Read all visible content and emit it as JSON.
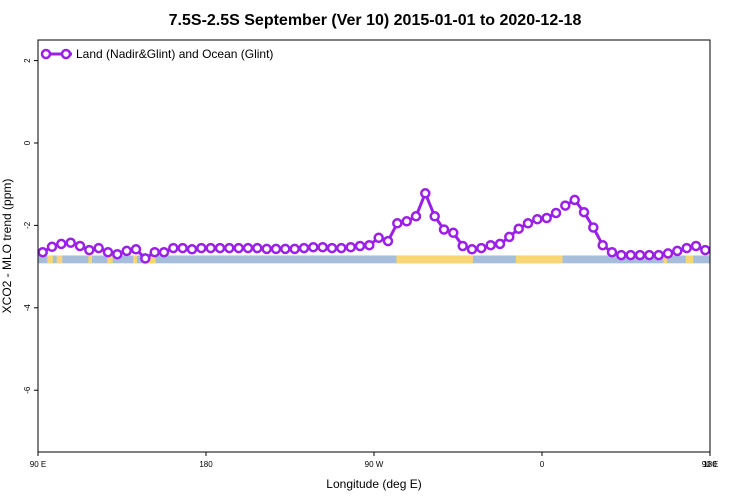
{
  "chart_data": {
    "type": "line",
    "title": "7.5S-2.5S September (Ver 10)   2015-01-01 to 2020-12-18",
    "xlabel": "Longitude (deg E)",
    "ylabel": "XCO2 - MLO trend (ppm)",
    "xlim": [
      90,
      450
    ],
    "ylim": [
      -7.5,
      2.5
    ],
    "x_tick_values": [
      90,
      180,
      270,
      360,
      450,
      540
    ],
    "x_tick_labels": [
      "90 E",
      "180",
      "90 W",
      "0",
      "90 E",
      "180"
    ],
    "y_ticks": [
      2,
      0,
      -2,
      -4,
      -6
    ],
    "y_tick_labels": [
      "2",
      "0",
      "-2",
      "-4",
      "-6"
    ],
    "legend": {
      "position": "top-left",
      "entries": [
        "Land (Nadir&Glint) and Ocean (Glint)"
      ]
    },
    "series": [
      {
        "name": "Land (Nadir&Glint) and Ocean (Glint)",
        "color": "#9B1FE8",
        "points": [
          [
            92.5,
            -2.65
          ],
          [
            97.5,
            -2.52
          ],
          [
            102.5,
            -2.45
          ],
          [
            107.5,
            -2.42
          ],
          [
            112.5,
            -2.5
          ],
          [
            117.5,
            -2.6
          ],
          [
            122.5,
            -2.55
          ],
          [
            127.5,
            -2.65
          ],
          [
            132.5,
            -2.7
          ],
          [
            137.5,
            -2.62
          ],
          [
            142.5,
            -2.58
          ],
          [
            147.5,
            -2.8
          ],
          [
            152.5,
            -2.65
          ],
          [
            157.5,
            -2.65
          ],
          [
            162.5,
            -2.55
          ],
          [
            167.5,
            -2.55
          ],
          [
            172.5,
            -2.58
          ],
          [
            177.5,
            -2.55
          ],
          [
            182.5,
            -2.55
          ],
          [
            187.5,
            -2.55
          ],
          [
            192.5,
            -2.55
          ],
          [
            197.5,
            -2.55
          ],
          [
            202.5,
            -2.55
          ],
          [
            207.5,
            -2.55
          ],
          [
            212.5,
            -2.57
          ],
          [
            217.5,
            -2.57
          ],
          [
            222.5,
            -2.57
          ],
          [
            227.5,
            -2.57
          ],
          [
            232.5,
            -2.55
          ],
          [
            237.5,
            -2.53
          ],
          [
            242.5,
            -2.53
          ],
          [
            247.5,
            -2.55
          ],
          [
            252.5,
            -2.55
          ],
          [
            257.5,
            -2.53
          ],
          [
            262.5,
            -2.5
          ],
          [
            267.5,
            -2.48
          ],
          [
            272.5,
            -2.3
          ],
          [
            277.5,
            -2.38
          ],
          [
            282.5,
            -1.95
          ],
          [
            287.5,
            -1.9
          ],
          [
            292.5,
            -1.78
          ],
          [
            297.5,
            -1.22
          ],
          [
            302.5,
            -1.78
          ],
          [
            307.5,
            -2.1
          ],
          [
            312.5,
            -2.18
          ],
          [
            317.5,
            -2.5
          ],
          [
            322.5,
            -2.58
          ],
          [
            327.5,
            -2.55
          ],
          [
            332.5,
            -2.48
          ],
          [
            337.5,
            -2.45
          ],
          [
            342.5,
            -2.28
          ],
          [
            347.5,
            -2.08
          ],
          [
            352.5,
            -1.95
          ],
          [
            357.5,
            -1.85
          ],
          [
            362.5,
            -1.82
          ],
          [
            367.5,
            -1.7
          ],
          null,
          [
            372.5,
            -1.52
          ],
          [
            377.5,
            -1.38
          ],
          [
            382.5,
            -1.68
          ],
          [
            387.5,
            -2.05
          ],
          [
            392.5,
            -2.48
          ],
          [
            397.5,
            -2.65
          ],
          [
            402.5,
            -2.72
          ],
          [
            407.5,
            -2.72
          ],
          [
            412.5,
            -2.72
          ],
          [
            417.5,
            -2.72
          ],
          [
            422.5,
            -2.72
          ],
          [
            427.5,
            -2.68
          ],
          [
            432.5,
            -2.62
          ],
          [
            437.5,
            -2.55
          ],
          [
            442.5,
            -2.5
          ],
          [
            447.5,
            -2.6
          ]
        ]
      }
    ]
  }
}
